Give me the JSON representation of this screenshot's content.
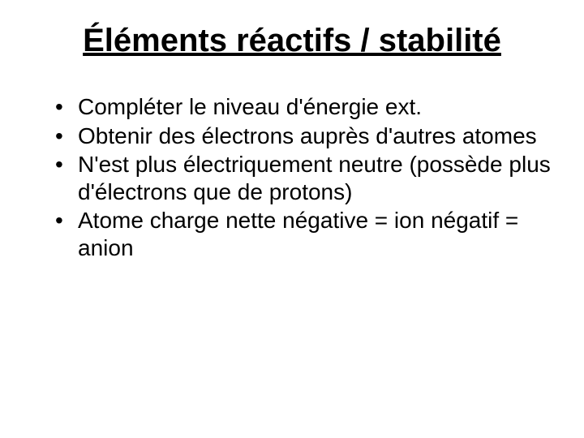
{
  "slide": {
    "title": "Éléments réactifs / stabilité",
    "bullets": [
      "Compléter le niveau d'énergie ext.",
      "Obtenir des électrons auprès d'autres atomes",
      "N'est plus électriquement neutre (possède plus d'électrons que de protons)",
      "Atome charge nette négative = ion négatif = anion"
    ]
  },
  "styling": {
    "background_color": "#ffffff",
    "text_color": "#000000",
    "title_fontsize": 40,
    "title_weight": "bold",
    "title_underline": true,
    "bullet_fontsize": 28,
    "font_family": "Arial"
  }
}
